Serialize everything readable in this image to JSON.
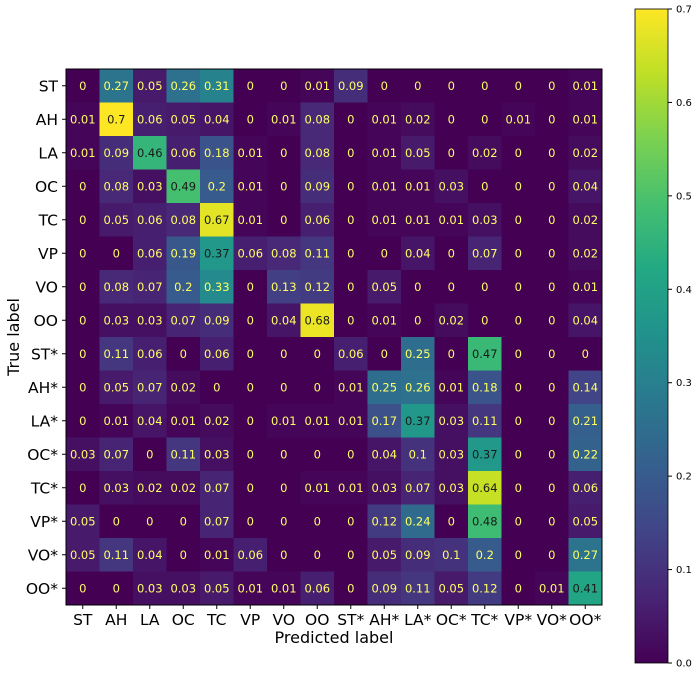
{
  "chart_data": {
    "type": "heatmap",
    "xlabel": "Predicted label",
    "ylabel": "True label",
    "x_categories": [
      "ST",
      "AH",
      "LA",
      "OC",
      "TC",
      "VP",
      "VO",
      "OO",
      "ST*",
      "AH*",
      "LA*",
      "OC*",
      "TC*",
      "VP*",
      "VO*",
      "OO*"
    ],
    "y_categories": [
      "ST",
      "AH",
      "LA",
      "OC",
      "TC",
      "VP",
      "VO",
      "OO",
      "ST*",
      "AH*",
      "LA*",
      "OC*",
      "TC*",
      "VP*",
      "VO*",
      "OO*"
    ],
    "values": [
      [
        0,
        0.27,
        0.05,
        0.26,
        0.31,
        0,
        0,
        0.01,
        0.09,
        0,
        0,
        0,
        0,
        0,
        0,
        0.01
      ],
      [
        0.01,
        0.7,
        0.06,
        0.05,
        0.04,
        0,
        0.01,
        0.08,
        0,
        0.01,
        0.02,
        0,
        0,
        0.01,
        0,
        0.01
      ],
      [
        0.01,
        0.09,
        0.46,
        0.06,
        0.18,
        0.01,
        0,
        0.08,
        0,
        0.01,
        0.05,
        0,
        0.02,
        0,
        0,
        0.02
      ],
      [
        0,
        0.08,
        0.03,
        0.49,
        0.2,
        0.01,
        0,
        0.09,
        0,
        0.01,
        0.01,
        0.03,
        0,
        0,
        0,
        0.04
      ],
      [
        0,
        0.05,
        0.06,
        0.08,
        0.67,
        0.01,
        0,
        0.06,
        0,
        0.01,
        0.01,
        0.01,
        0.03,
        0,
        0,
        0.02
      ],
      [
        0,
        0,
        0.06,
        0.19,
        0.37,
        0.06,
        0.08,
        0.11,
        0,
        0,
        0.04,
        0,
        0.07,
        0,
        0,
        0.02
      ],
      [
        0,
        0.08,
        0.07,
        0.2,
        0.33,
        0,
        0.13,
        0.12,
        0,
        0.05,
        0,
        0,
        0,
        0,
        0,
        0.01
      ],
      [
        0,
        0.03,
        0.03,
        0.07,
        0.09,
        0,
        0.04,
        0.68,
        0,
        0.01,
        0,
        0.02,
        0,
        0,
        0,
        0.04
      ],
      [
        0,
        0.11,
        0.06,
        0,
        0.06,
        0,
        0,
        0,
        0.06,
        0,
        0.25,
        0,
        0.47,
        0,
        0,
        0
      ],
      [
        0,
        0.05,
        0.07,
        0.02,
        0,
        0,
        0,
        0,
        0.01,
        0.25,
        0.26,
        0.01,
        0.18,
        0,
        0,
        0.14
      ],
      [
        0,
        0.01,
        0.04,
        0.01,
        0.02,
        0,
        0.01,
        0.01,
        0.01,
        0.17,
        0.37,
        0.03,
        0.11,
        0,
        0,
        0.21
      ],
      [
        0.03,
        0.07,
        0,
        0.11,
        0.03,
        0,
        0,
        0,
        0,
        0.04,
        0.1,
        0.03,
        0.37,
        0,
        0,
        0.22
      ],
      [
        0,
        0.03,
        0.02,
        0.02,
        0.07,
        0,
        0,
        0.01,
        0.01,
        0.03,
        0.07,
        0.03,
        0.64,
        0,
        0,
        0.06
      ],
      [
        0.05,
        0,
        0,
        0,
        0.07,
        0,
        0,
        0,
        0,
        0.12,
        0.24,
        0,
        0.48,
        0,
        0,
        0.05
      ],
      [
        0.05,
        0.11,
        0.04,
        0,
        0.01,
        0.06,
        0,
        0,
        0,
        0.05,
        0.09,
        0.1,
        0.2,
        0,
        0,
        0.27
      ],
      [
        0,
        0,
        0.03,
        0.03,
        0.05,
        0.01,
        0.01,
        0.06,
        0,
        0.09,
        0.11,
        0.05,
        0.12,
        0,
        0.01,
        0.41
      ]
    ],
    "colormap": "viridis",
    "vmin": 0,
    "vmax": 0.7,
    "colorbar_ticks": [
      "0.0",
      "0.1",
      "0.2",
      "0.3",
      "0.4",
      "0.5",
      "0.6",
      "0.7"
    ],
    "grid": false,
    "colorbar_placement": "right"
  },
  "colors": {
    "text_light": "#ffff66",
    "text_dark": "#1a1a1a"
  }
}
